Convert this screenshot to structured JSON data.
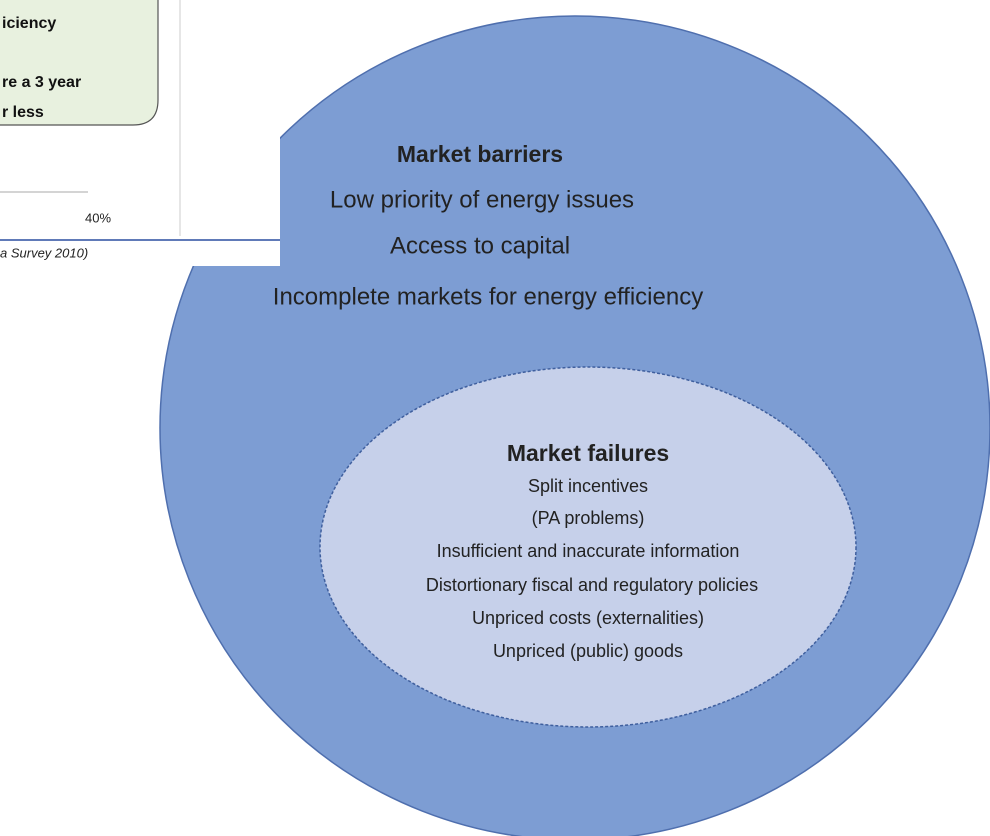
{
  "inset": {
    "callout_lines": [
      "iciency",
      "re a 3 year",
      "r less"
    ],
    "axis_label": "40%",
    "source": "a Survey 2010)"
  },
  "market_barriers": {
    "title": "Market barriers",
    "items": [
      "Low priority of energy issues",
      "Access to capital",
      "Incomplete markets for energy efficiency"
    ]
  },
  "market_failures": {
    "title": "Market failures",
    "items": [
      "Split incentives",
      "(PA problems)",
      "Insufficient and inaccurate information",
      "Distortionary fiscal and regulatory policies",
      "Unpriced costs (externalities)",
      "Unpriced (public) goods"
    ]
  }
}
